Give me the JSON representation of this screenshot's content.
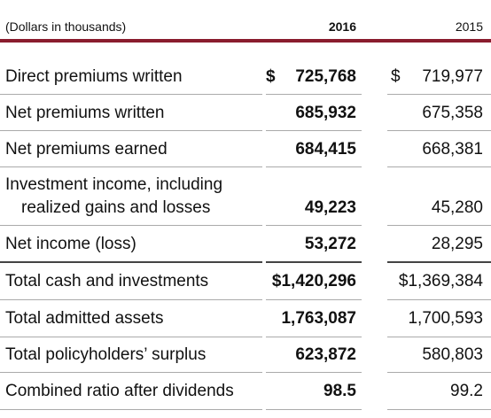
{
  "table": {
    "header": [
      "(Dollars in thousands)",
      "2016",
      "2015"
    ],
    "rows": [
      {
        "label": [
          "Direct premiums written"
        ],
        "cur_2016": "$",
        "v2016": "725,768",
        "cur_2015": "$",
        "v2015": "719,977"
      },
      {
        "label": [
          "Net premiums written"
        ],
        "v2016": "685,932",
        "v2015": "675,358"
      },
      {
        "label": [
          "Net premiums earned"
        ],
        "v2016": "684,415",
        "v2015": "668,381"
      },
      {
        "label": [
          "Investment income, including",
          "realized gains and losses"
        ],
        "v2016": "49,223",
        "v2015": "45,280"
      },
      {
        "label": [
          "Net income (loss)"
        ],
        "v2016": "53,272",
        "v2015": "28,295"
      },
      {
        "label": [
          "Total cash and investments"
        ],
        "v2016": "$1,420,296",
        "v2015": "$1,369,384"
      },
      {
        "label": [
          "Total admitted assets"
        ],
        "v2016": "1,763,087",
        "v2015": "1,700,593"
      },
      {
        "label": [
          "Total policyholders’ surplus"
        ],
        "v2016": "623,872",
        "v2015": "580,803"
      },
      {
        "label": [
          "Combined ratio after dividends"
        ],
        "v2016": "98.5",
        "v2015": "99.2"
      }
    ]
  }
}
